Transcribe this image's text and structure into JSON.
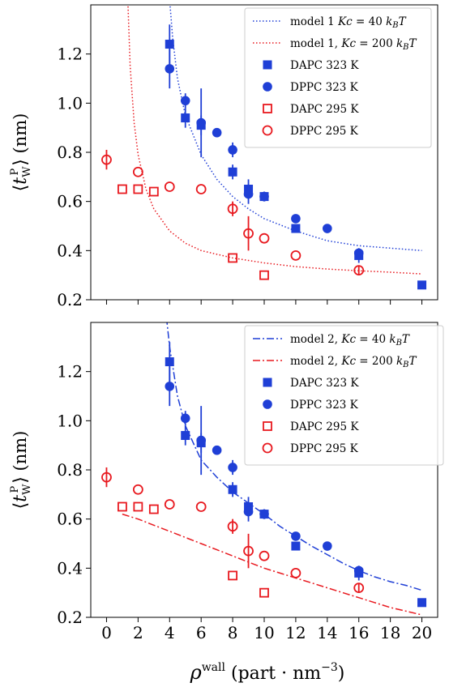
{
  "chart_data": [
    {
      "type": "scatter",
      "panel": "top",
      "xlim": [
        -1,
        21
      ],
      "ylim": [
        0.2,
        1.4
      ],
      "xticks": [
        0,
        2,
        4,
        6,
        8,
        10,
        12,
        14,
        16,
        18,
        20
      ],
      "xtick_labels_shown": false,
      "yticks": [
        0.2,
        0.4,
        0.6,
        0.8,
        1.0,
        1.2
      ],
      "ytick_labels": [
        "0.2",
        "0.4",
        "0.6",
        "0.8",
        "1.0",
        "1.2"
      ],
      "ylabel": "⟨tWP⟩ (nm)",
      "grid": false,
      "legend_position": "top-right",
      "curves": [
        {
          "name": "model 1 Kc = 40 kBT",
          "style": "dotted",
          "color": "#1f3fd6",
          "x": [
            4.0,
            4.2,
            4.5,
            5,
            6,
            7,
            8,
            9,
            10,
            12,
            14,
            16,
            18,
            20
          ],
          "y": [
            1.42,
            1.26,
            1.1,
            0.95,
            0.79,
            0.69,
            0.62,
            0.57,
            0.53,
            0.48,
            0.44,
            0.42,
            0.41,
            0.4
          ]
        },
        {
          "name": "model 1, Kc = 200 kBT",
          "style": "dotted",
          "color": "#e8191f",
          "x": [
            1.35,
            1.5,
            1.75,
            2,
            2.5,
            3,
            4,
            5,
            6,
            8,
            10,
            12,
            14,
            16,
            18,
            20
          ],
          "y": [
            1.42,
            1.15,
            0.92,
            0.79,
            0.65,
            0.57,
            0.48,
            0.43,
            0.4,
            0.37,
            0.35,
            0.335,
            0.325,
            0.318,
            0.312,
            0.305
          ]
        }
      ],
      "series": [
        {
          "name": "DAPC 323 K",
          "marker": "square-filled",
          "color": "#1f3fd6",
          "points": [
            [
              4,
              1.24,
              0.08
            ],
            [
              5,
              0.94,
              0.04
            ],
            [
              6,
              0.91,
              0.04
            ],
            [
              8,
              0.72,
              0.03
            ],
            [
              9,
              0.65,
              0.04
            ],
            [
              10,
              0.62,
              0.02
            ],
            [
              12,
              0.49,
              0
            ],
            [
              16,
              0.38,
              0.03
            ],
            [
              20,
              0.26,
              0
            ]
          ]
        },
        {
          "name": "DPPC 323 K",
          "marker": "circle-filled",
          "color": "#1f3fd6",
          "points": [
            [
              4,
              1.14,
              0.08
            ],
            [
              5,
              1.01,
              0.03
            ],
            [
              6,
              0.92,
              0.14
            ],
            [
              7,
              0.88,
              0
            ],
            [
              8,
              0.81,
              0.03
            ],
            [
              9,
              0.63,
              0.04
            ],
            [
              10,
              0.62,
              0
            ],
            [
              12,
              0.53,
              0
            ],
            [
              14,
              0.49,
              0
            ],
            [
              16,
              0.39,
              0
            ]
          ]
        },
        {
          "name": "DAPC 295 K",
          "marker": "square-open",
          "color": "#e8191f",
          "points": [
            [
              1,
              0.65,
              0
            ],
            [
              2,
              0.65,
              0
            ],
            [
              3,
              0.64,
              0
            ],
            [
              8,
              0.37,
              0
            ],
            [
              10,
              0.3,
              0
            ]
          ]
        },
        {
          "name": "DPPC 295 K",
          "marker": "circle-open",
          "color": "#e8191f",
          "points": [
            [
              0,
              0.77,
              0.04
            ],
            [
              2,
              0.72,
              0
            ],
            [
              4,
              0.66,
              0
            ],
            [
              6,
              0.65,
              0
            ],
            [
              8,
              0.57,
              0.03
            ],
            [
              9,
              0.47,
              0.07
            ],
            [
              10,
              0.45,
              0
            ],
            [
              12,
              0.38,
              0
            ],
            [
              16,
              0.32,
              0.02
            ]
          ]
        }
      ],
      "legend": [
        {
          "kind": "line",
          "style": "dotted",
          "color": "#1f3fd6",
          "label": "model 1 Kc = 40 kBT"
        },
        {
          "kind": "line",
          "style": "dotted",
          "color": "#e8191f",
          "label": "model 1, Kc = 200 kBT"
        },
        {
          "kind": "marker",
          "marker": "square-filled",
          "color": "#1f3fd6",
          "label": "DAPC 323 K"
        },
        {
          "kind": "marker",
          "marker": "circle-filled",
          "color": "#1f3fd6",
          "label": "DPPC 323 K"
        },
        {
          "kind": "marker",
          "marker": "square-open",
          "color": "#e8191f",
          "label": "DAPC 295 K"
        },
        {
          "kind": "marker",
          "marker": "circle-open",
          "color": "#e8191f",
          "label": "DPPC 295 K"
        }
      ]
    },
    {
      "type": "scatter",
      "panel": "bottom",
      "xlim": [
        -1,
        21
      ],
      "ylim": [
        0.2,
        1.4
      ],
      "xticks": [
        0,
        2,
        4,
        6,
        8,
        10,
        12,
        14,
        16,
        18,
        20
      ],
      "xtick_labels": [
        "0",
        "2",
        "4",
        "6",
        "8",
        "10",
        "12",
        "14",
        "16",
        "18",
        "20"
      ],
      "xtick_labels_shown": true,
      "xlabel": "ρwall (part · nm−3)",
      "yticks": [
        0.2,
        0.4,
        0.6,
        0.8,
        1.0,
        1.2
      ],
      "ytick_labels": [
        "0.2",
        "0.4",
        "0.6",
        "0.8",
        "1.0",
        "1.2"
      ],
      "ylabel": "⟨tWP⟩ (nm)",
      "grid": false,
      "legend_position": "top-right",
      "curves": [
        {
          "name": "model 2, Kc = 40 kBT",
          "style": "dashdot",
          "color": "#1f3fd6",
          "x": [
            3.8,
            4,
            4.5,
            5,
            6,
            7,
            8,
            9,
            10,
            11,
            12,
            13,
            14,
            15,
            16,
            17,
            18,
            19,
            20
          ],
          "y": [
            1.42,
            1.3,
            1.1,
            0.98,
            0.84,
            0.77,
            0.71,
            0.665,
            0.62,
            0.57,
            0.53,
            0.49,
            0.455,
            0.42,
            0.39,
            0.365,
            0.345,
            0.33,
            0.31
          ]
        },
        {
          "name": "model 2, Kc = 200 kBT",
          "style": "dashdot",
          "color": "#e8191f",
          "x": [
            1,
            2,
            3,
            4,
            5,
            6,
            7,
            8,
            9,
            10,
            11,
            12,
            13,
            14,
            15,
            16,
            17,
            18,
            19,
            20
          ],
          "y": [
            0.62,
            0.6,
            0.575,
            0.55,
            0.525,
            0.5,
            0.475,
            0.45,
            0.425,
            0.4,
            0.38,
            0.36,
            0.34,
            0.32,
            0.3,
            0.28,
            0.26,
            0.24,
            0.225,
            0.21
          ]
        }
      ],
      "series": [
        {
          "name": "DAPC 323 K",
          "marker": "square-filled",
          "color": "#1f3fd6",
          "points": [
            [
              4,
              1.24,
              0.08
            ],
            [
              5,
              0.94,
              0.04
            ],
            [
              6,
              0.91,
              0.04
            ],
            [
              8,
              0.72,
              0.03
            ],
            [
              9,
              0.65,
              0.04
            ],
            [
              10,
              0.62,
              0.02
            ],
            [
              12,
              0.49,
              0
            ],
            [
              16,
              0.38,
              0.03
            ],
            [
              20,
              0.26,
              0
            ]
          ]
        },
        {
          "name": "DPPC 323 K",
          "marker": "circle-filled",
          "color": "#1f3fd6",
          "points": [
            [
              4,
              1.14,
              0.08
            ],
            [
              5,
              1.01,
              0.03
            ],
            [
              6,
              0.92,
              0.14
            ],
            [
              7,
              0.88,
              0
            ],
            [
              8,
              0.81,
              0.03
            ],
            [
              9,
              0.63,
              0.04
            ],
            [
              10,
              0.62,
              0
            ],
            [
              12,
              0.53,
              0
            ],
            [
              14,
              0.49,
              0
            ],
            [
              16,
              0.39,
              0
            ]
          ]
        },
        {
          "name": "DAPC 295 K",
          "marker": "square-open",
          "color": "#e8191f",
          "points": [
            [
              1,
              0.65,
              0
            ],
            [
              2,
              0.65,
              0
            ],
            [
              3,
              0.64,
              0
            ],
            [
              8,
              0.37,
              0
            ],
            [
              10,
              0.3,
              0
            ]
          ]
        },
        {
          "name": "DPPC 295 K",
          "marker": "circle-open",
          "color": "#e8191f",
          "points": [
            [
              0,
              0.77,
              0.04
            ],
            [
              2,
              0.72,
              0
            ],
            [
              4,
              0.66,
              0
            ],
            [
              6,
              0.65,
              0
            ],
            [
              8,
              0.57,
              0.03
            ],
            [
              9,
              0.47,
              0.07
            ],
            [
              10,
              0.45,
              0
            ],
            [
              12,
              0.38,
              0
            ],
            [
              16,
              0.32,
              0.02
            ]
          ]
        }
      ],
      "legend": [
        {
          "kind": "line",
          "style": "dashdot",
          "color": "#1f3fd6",
          "label": "model 2, Kc = 40 kBT"
        },
        {
          "kind": "line",
          "style": "dashdot",
          "color": "#e8191f",
          "label": "model 2, Kc = 200 kBT"
        },
        {
          "kind": "marker",
          "marker": "square-filled",
          "color": "#1f3fd6",
          "label": "DAPC 323 K"
        },
        {
          "kind": "marker",
          "marker": "circle-filled",
          "color": "#1f3fd6",
          "label": "DPPC 323 K"
        },
        {
          "kind": "marker",
          "marker": "square-open",
          "color": "#e8191f",
          "label": "DAPC 295 K"
        },
        {
          "kind": "marker",
          "marker": "circle-open",
          "color": "#e8191f",
          "label": "DPPC 295 K"
        }
      ]
    }
  ]
}
